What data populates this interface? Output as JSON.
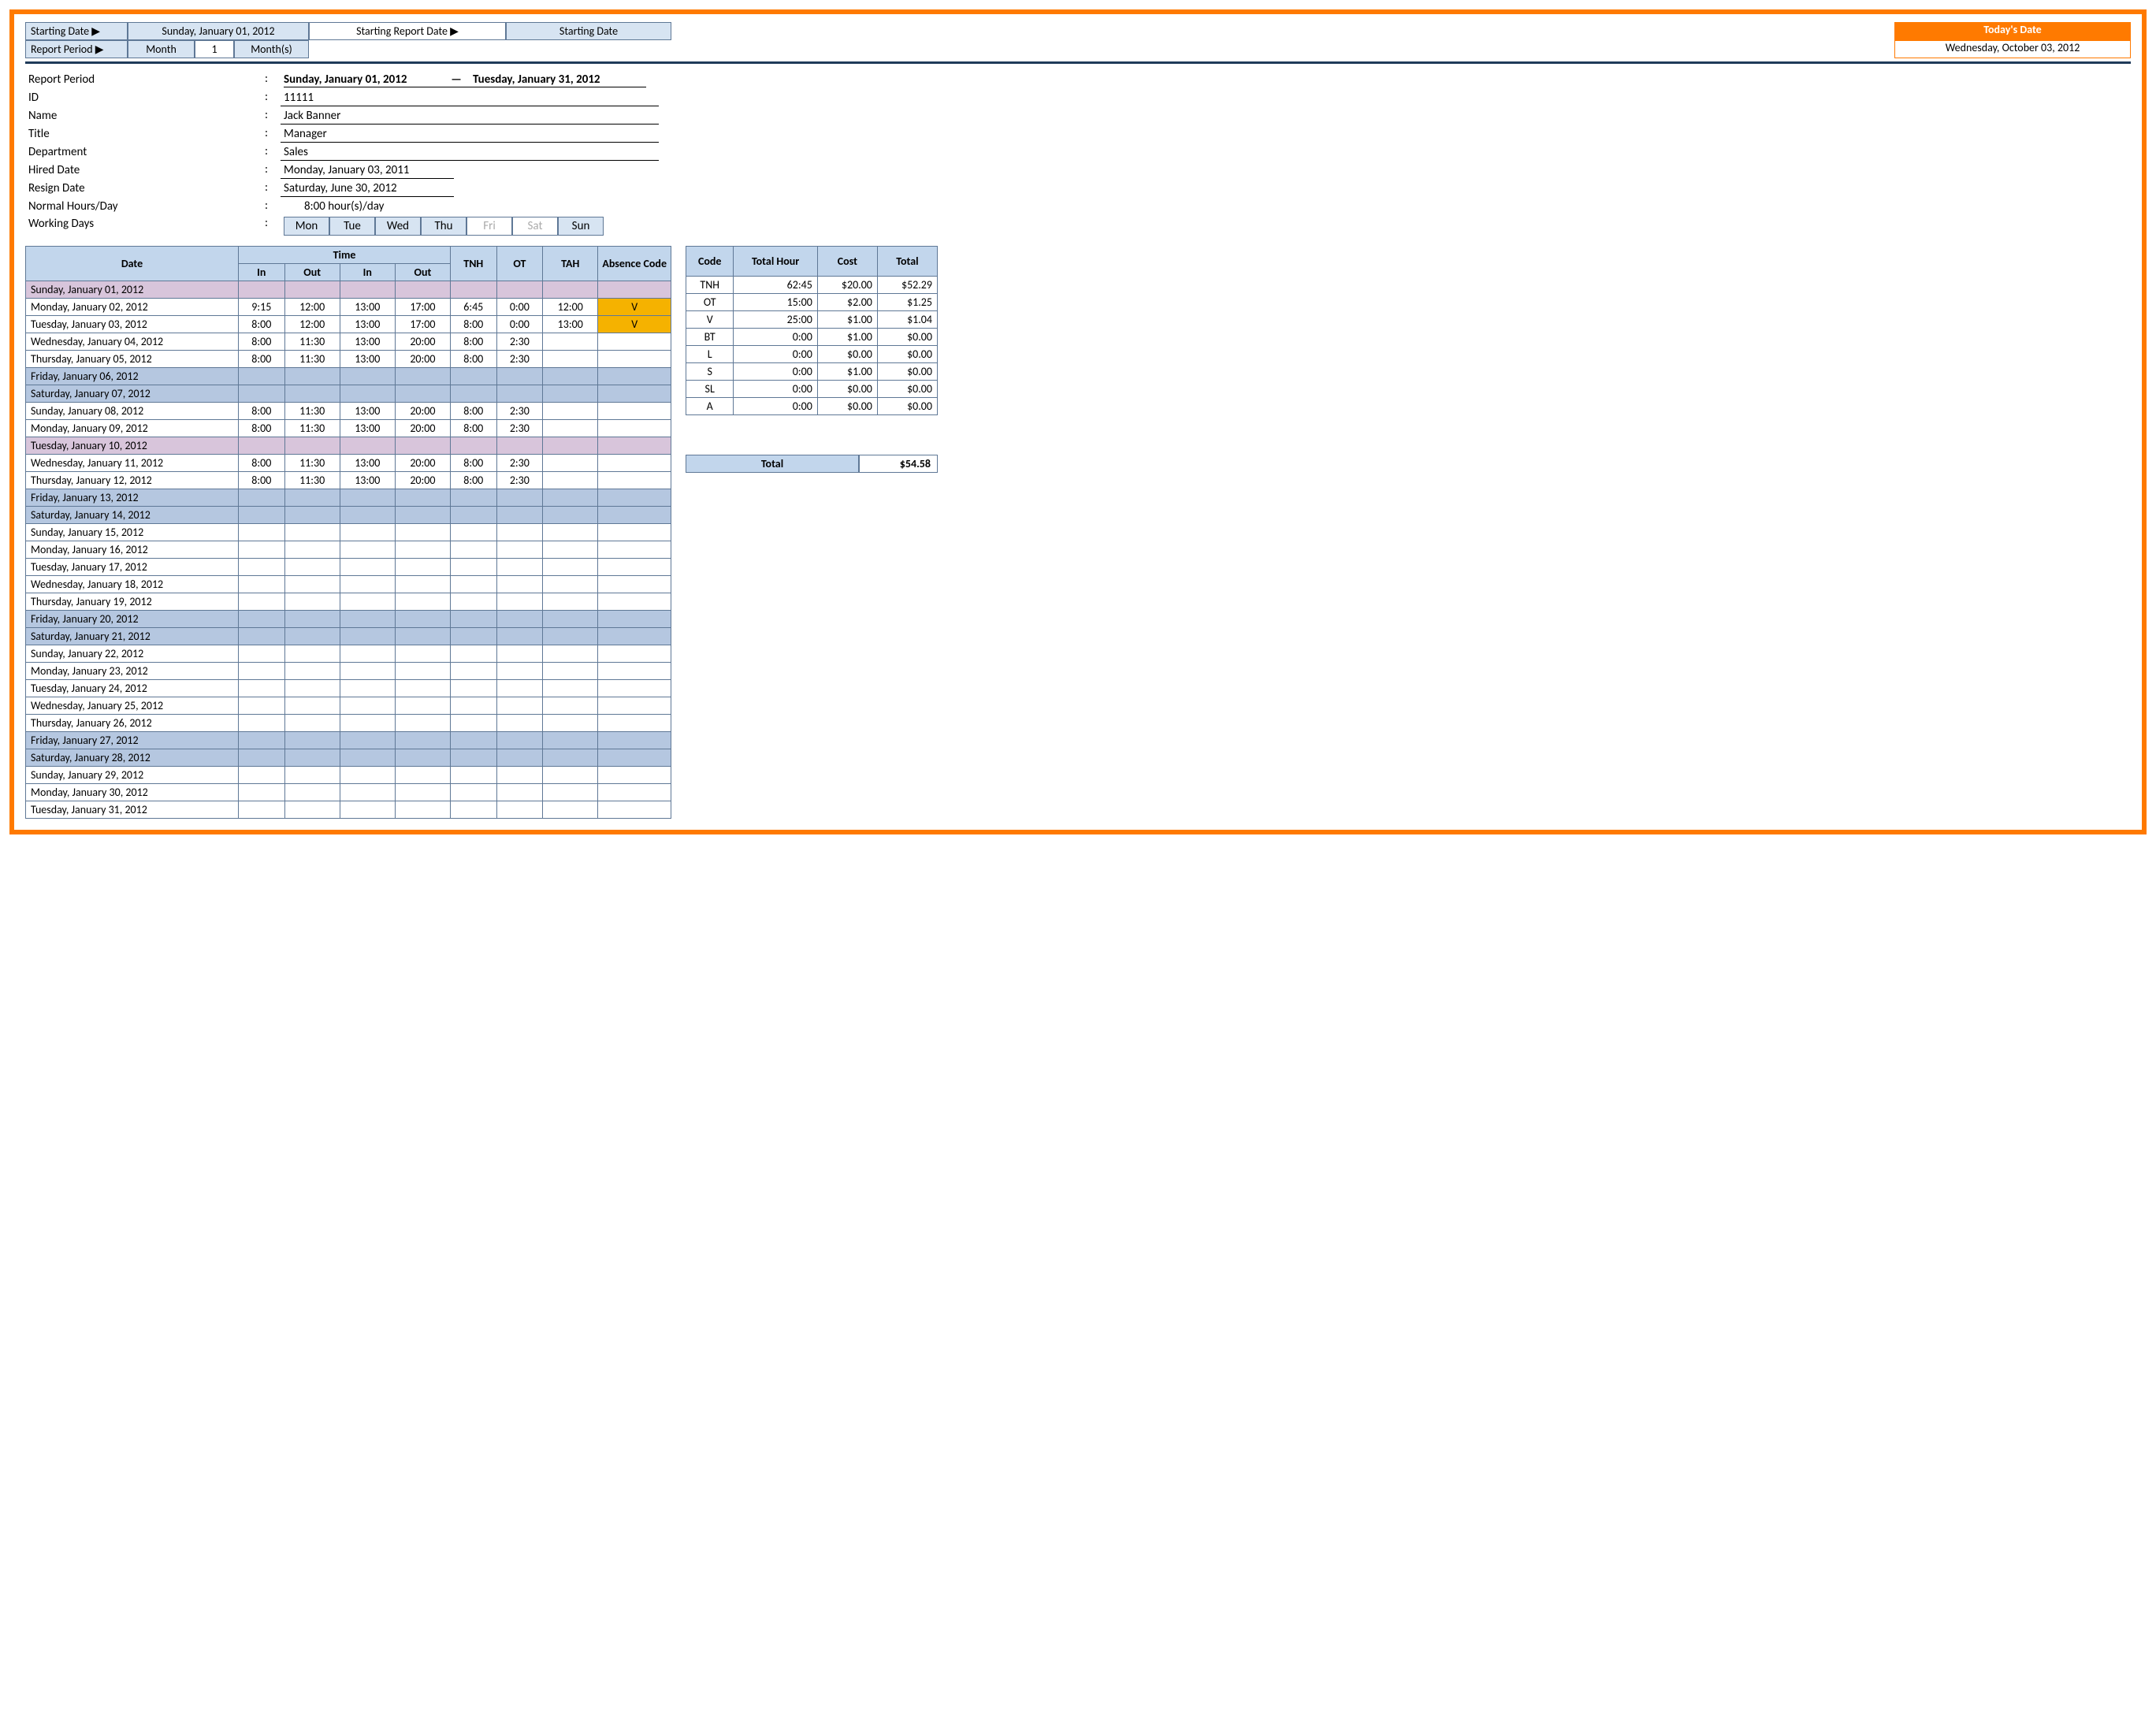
{
  "top": {
    "startingDateLabel": "Starting Date ▶",
    "startingDateValue": "Sunday, January 01, 2012",
    "startingReportDateLabel": "Starting Report Date ▶",
    "startingReportDateValue": "Starting Date",
    "reportPeriodLabel": "Report Period ▶",
    "monthLabel": "Month",
    "monthValue": "1",
    "monthsLabel": "Month(s)",
    "todaysDateLabel": "Today's Date",
    "todaysDateValue": "Wednesday, October 03, 2012"
  },
  "info": {
    "labels": {
      "reportPeriod": "Report Period",
      "id": "ID",
      "name": "Name",
      "title": "Title",
      "department": "Department",
      "hiredDate": "Hired Date",
      "resignDate": "Resign Date",
      "normalHours": "Normal Hours/Day",
      "workingDays": "Working Days"
    },
    "colon": ":",
    "reportPeriodStart": "Sunday, January 01, 2012",
    "reportPeriodEnd": "Tuesday, January 31, 2012",
    "id": "11111",
    "name": "Jack Banner",
    "title": "Manager",
    "department": "Sales",
    "hiredDate": "Monday, January 03, 2011",
    "resignDate": "Saturday, June 30, 2012",
    "normalHours": "8:00    hour(s)/day",
    "days": [
      "Mon",
      "Tue",
      "Wed",
      "Thu",
      "Fri",
      "Sat",
      "Sun"
    ],
    "daysOff": [
      false,
      false,
      false,
      false,
      true,
      true,
      false
    ]
  },
  "timesheet": {
    "headers": {
      "date": "Date",
      "time": "Time",
      "in": "In",
      "out": "Out",
      "tnh": "TNH",
      "ot": "OT",
      "tah": "TAH",
      "absence": "Absence Code"
    },
    "rows": [
      {
        "date": "Sunday, January 01, 2012",
        "shade": "pink"
      },
      {
        "date": "Monday, January 02, 2012",
        "in1": "9:15",
        "out1": "12:00",
        "in2": "13:00",
        "out2": "17:00",
        "tnh": "6:45",
        "ot": "0:00",
        "tah": "12:00",
        "abs": "V"
      },
      {
        "date": "Tuesday, January 03, 2012",
        "in1": "8:00",
        "out1": "12:00",
        "in2": "13:00",
        "out2": "17:00",
        "tnh": "8:00",
        "ot": "0:00",
        "tah": "13:00",
        "abs": "V"
      },
      {
        "date": "Wednesday, January 04, 2012",
        "in1": "8:00",
        "out1": "11:30",
        "in2": "13:00",
        "out2": "20:00",
        "tnh": "8:00",
        "ot": "2:30"
      },
      {
        "date": "Thursday, January 05, 2012",
        "in1": "8:00",
        "out1": "11:30",
        "in2": "13:00",
        "out2": "20:00",
        "tnh": "8:00",
        "ot": "2:30"
      },
      {
        "date": "Friday, January 06, 2012",
        "shade": "blue"
      },
      {
        "date": "Saturday, January 07, 2012",
        "shade": "blue"
      },
      {
        "date": "Sunday, January 08, 2012",
        "in1": "8:00",
        "out1": "11:30",
        "in2": "13:00",
        "out2": "20:00",
        "tnh": "8:00",
        "ot": "2:30"
      },
      {
        "date": "Monday, January 09, 2012",
        "in1": "8:00",
        "out1": "11:30",
        "in2": "13:00",
        "out2": "20:00",
        "tnh": "8:00",
        "ot": "2:30"
      },
      {
        "date": "Tuesday, January 10, 2012",
        "shade": "pink"
      },
      {
        "date": "Wednesday, January 11, 2012",
        "in1": "8:00",
        "out1": "11:30",
        "in2": "13:00",
        "out2": "20:00",
        "tnh": "8:00",
        "ot": "2:30"
      },
      {
        "date": "Thursday, January 12, 2012",
        "in1": "8:00",
        "out1": "11:30",
        "in2": "13:00",
        "out2": "20:00",
        "tnh": "8:00",
        "ot": "2:30"
      },
      {
        "date": "Friday, January 13, 2012",
        "shade": "blue"
      },
      {
        "date": "Saturday, January 14, 2012",
        "shade": "blue"
      },
      {
        "date": "Sunday, January 15, 2012"
      },
      {
        "date": "Monday, January 16, 2012"
      },
      {
        "date": "Tuesday, January 17, 2012"
      },
      {
        "date": "Wednesday, January 18, 2012"
      },
      {
        "date": "Thursday, January 19, 2012"
      },
      {
        "date": "Friday, January 20, 2012",
        "shade": "blue"
      },
      {
        "date": "Saturday, January 21, 2012",
        "shade": "blue"
      },
      {
        "date": "Sunday, January 22, 2012"
      },
      {
        "date": "Monday, January 23, 2012"
      },
      {
        "date": "Tuesday, January 24, 2012"
      },
      {
        "date": "Wednesday, January 25, 2012"
      },
      {
        "date": "Thursday, January 26, 2012"
      },
      {
        "date": "Friday, January 27, 2012",
        "shade": "blue"
      },
      {
        "date": "Saturday, January 28, 2012",
        "shade": "blue"
      },
      {
        "date": "Sunday, January 29, 2012"
      },
      {
        "date": "Monday, January 30, 2012"
      },
      {
        "date": "Tuesday, January 31, 2012"
      }
    ]
  },
  "summary": {
    "headers": {
      "code": "Code",
      "totalHour": "Total Hour",
      "cost": "Cost",
      "total": "Total"
    },
    "rows": [
      {
        "code": "TNH",
        "hour": "62:45",
        "cost": "$20.00",
        "total": "$52.29"
      },
      {
        "code": "OT",
        "hour": "15:00",
        "cost": "$2.00",
        "total": "$1.25"
      },
      {
        "code": "V",
        "hour": "25:00",
        "cost": "$1.00",
        "total": "$1.04"
      },
      {
        "code": "BT",
        "hour": "0:00",
        "cost": "$1.00",
        "total": "$0.00"
      },
      {
        "code": "L",
        "hour": "0:00",
        "cost": "$0.00",
        "total": "$0.00"
      },
      {
        "code": "S",
        "hour": "0:00",
        "cost": "$1.00",
        "total": "$0.00"
      },
      {
        "code": "SL",
        "hour": "0:00",
        "cost": "$0.00",
        "total": "$0.00"
      },
      {
        "code": "A",
        "hour": "0:00",
        "cost": "$0.00",
        "total": "$0.00"
      }
    ],
    "grandTotalLabel": "Total",
    "grandTotal": "$54.58"
  },
  "colors": {
    "frame": "#ff7a00",
    "headerFill": "#c2d6ec",
    "lightFill": "#d7e4f2",
    "border": "#5f7896",
    "shadeBlue": "#b5c7e0",
    "shadePink": "#d8c5db",
    "absHighlight": "#f5b200",
    "hr": "#1f3b5a"
  }
}
